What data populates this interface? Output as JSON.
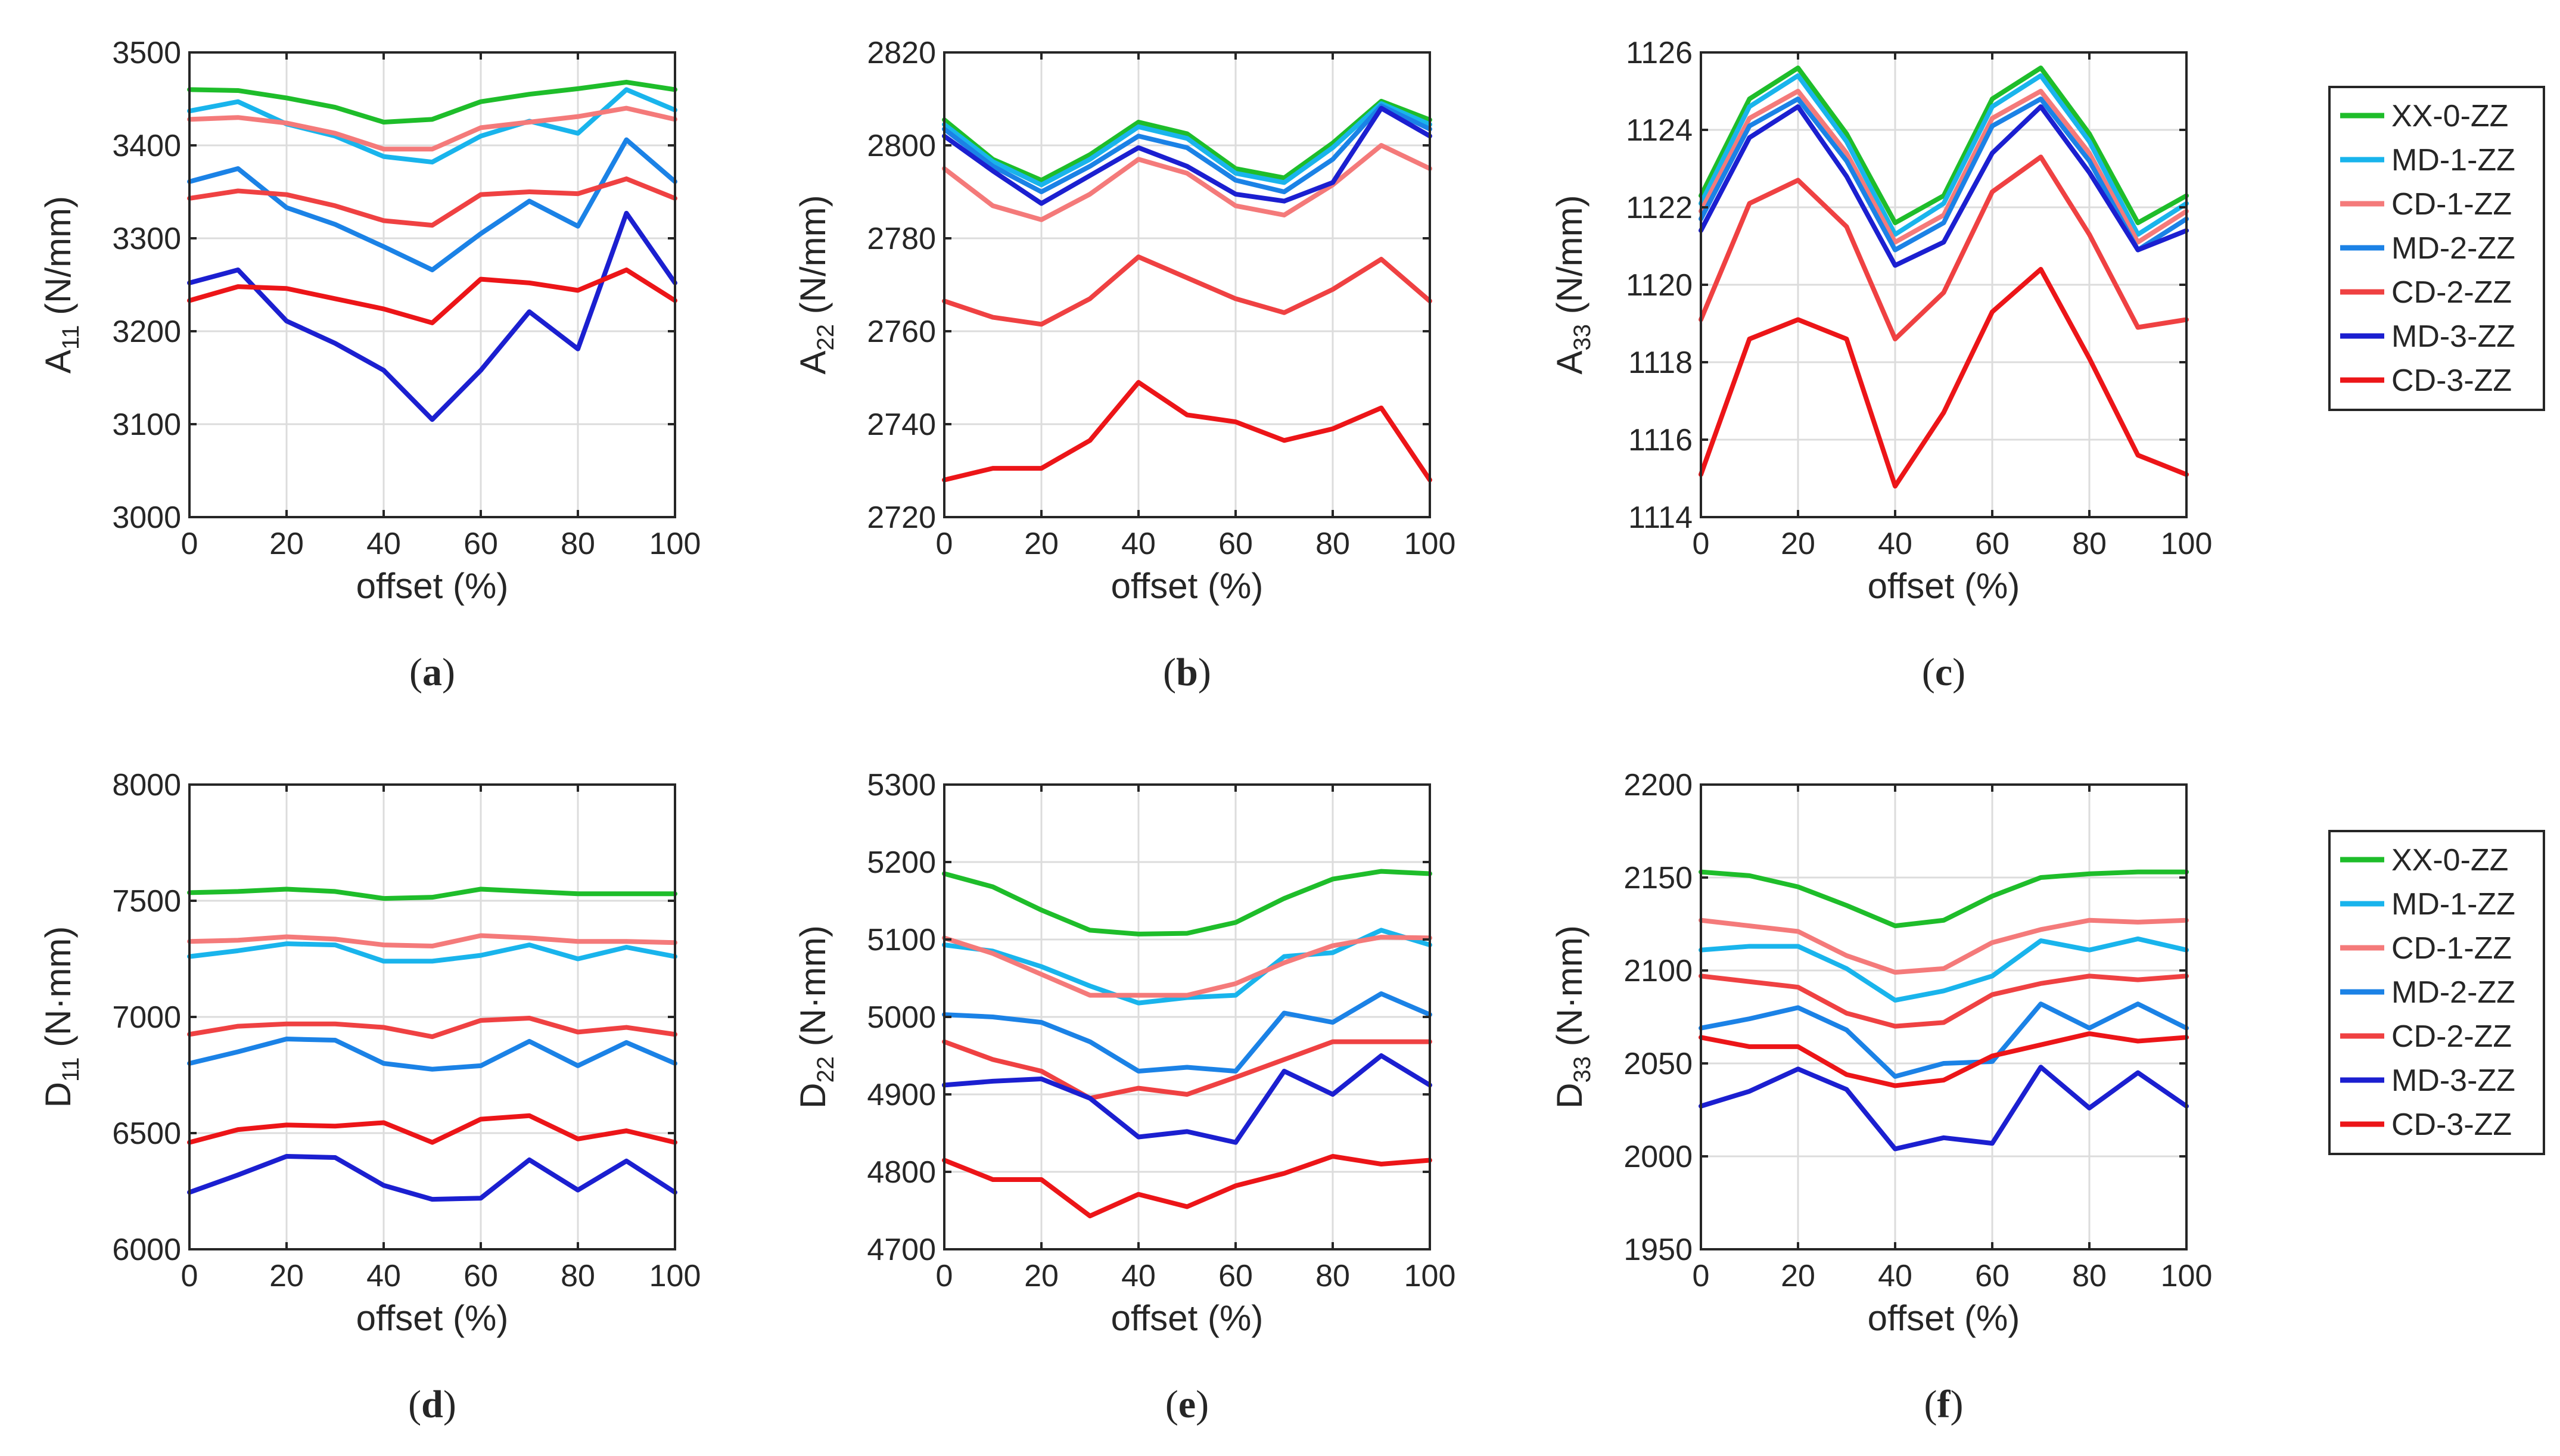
{
  "figure": {
    "legend": {
      "entries": [
        {
          "name": "XX-0-ZZ",
          "color": "#1ebd2a"
        },
        {
          "name": "MD-1-ZZ",
          "color": "#19b4ec"
        },
        {
          "name": "CD-1-ZZ",
          "color": "#f47a7a"
        },
        {
          "name": "MD-2-ZZ",
          "color": "#1b82e6"
        },
        {
          "name": "CD-2-ZZ",
          "color": "#ef4142"
        },
        {
          "name": "MD-3-ZZ",
          "color": "#1b1fd0"
        },
        {
          "name": "CD-3-ZZ",
          "color": "#ec1518"
        }
      ]
    }
  },
  "chart_data": [
    {
      "type": "line",
      "panel": "a",
      "ylabel_main": "A",
      "ylabel_sub": "11",
      "ylabel_unit": " (N/mm)",
      "xlabel": "offset (%)",
      "xlim": [
        0,
        100
      ],
      "ylim": [
        3000,
        3500
      ],
      "grid": true,
      "xticks": [
        0,
        20,
        40,
        60,
        80,
        100
      ],
      "yticks": [
        3000,
        3100,
        3200,
        3300,
        3400,
        3500
      ],
      "x": [
        0,
        10,
        20,
        30,
        40,
        50,
        60,
        70,
        80,
        90,
        100
      ],
      "series": [
        {
          "name": "XX-0-ZZ",
          "values": [
            3460,
            3459,
            3451,
            3441,
            3425,
            3428,
            3447,
            3455,
            3461,
            3468,
            3460
          ]
        },
        {
          "name": "MD-1-ZZ",
          "values": [
            3437,
            3447,
            3423,
            3410,
            3388,
            3382,
            3410,
            3426,
            3413,
            3460,
            3438
          ]
        },
        {
          "name": "CD-1-ZZ",
          "values": [
            3428,
            3430,
            3424,
            3413,
            3396,
            3396,
            3419,
            3425,
            3431,
            3440,
            3428
          ]
        },
        {
          "name": "MD-2-ZZ",
          "values": [
            3361,
            3375,
            3333,
            3315,
            3291,
            3266,
            3305,
            3340,
            3313,
            3406,
            3361
          ]
        },
        {
          "name": "CD-2-ZZ",
          "values": [
            3343,
            3351,
            3347,
            3335,
            3319,
            3314,
            3347,
            3350,
            3348,
            3364,
            3343
          ]
        },
        {
          "name": "MD-3-ZZ",
          "values": [
            3252,
            3266,
            3211,
            3187,
            3158,
            3105,
            3158,
            3221,
            3181,
            3327,
            3252
          ]
        },
        {
          "name": "CD-3-ZZ",
          "values": [
            3233,
            3248,
            3246,
            3235,
            3224,
            3209,
            3256,
            3252,
            3244,
            3266,
            3233
          ]
        }
      ]
    },
    {
      "type": "line",
      "panel": "b",
      "ylabel_main": "A",
      "ylabel_sub": "22",
      "ylabel_unit": " (N/mm)",
      "xlabel": "offset (%)",
      "xlim": [
        0,
        100
      ],
      "ylim": [
        2720,
        2820
      ],
      "grid": true,
      "xticks": [
        0,
        20,
        40,
        60,
        80,
        100
      ],
      "yticks": [
        2720,
        2740,
        2760,
        2780,
        2800,
        2820
      ],
      "x": [
        0,
        10,
        20,
        30,
        40,
        50,
        60,
        70,
        80,
        90,
        100
      ],
      "series": [
        {
          "name": "XX-0-ZZ",
          "values": [
            2805.5,
            2797,
            2792.5,
            2798,
            2805,
            2802.5,
            2795,
            2793,
            2800.5,
            2809.5,
            2805.5
          ]
        },
        {
          "name": "MD-1-ZZ",
          "values": [
            2804.5,
            2796.5,
            2791.5,
            2797,
            2804,
            2801.5,
            2794,
            2792,
            2799.5,
            2809,
            2804.5
          ]
        },
        {
          "name": "CD-1-ZZ",
          "values": [
            2795,
            2787,
            2784,
            2789.5,
            2797,
            2794,
            2787,
            2785,
            2791.5,
            2800,
            2795
          ]
        },
        {
          "name": "MD-2-ZZ",
          "values": [
            2803.5,
            2795.5,
            2790,
            2795.5,
            2802,
            2799.5,
            2792.5,
            2790,
            2797,
            2808.5,
            2803.5
          ]
        },
        {
          "name": "CD-2-ZZ",
          "values": [
            2766.5,
            2763,
            2761.5,
            2767,
            2776,
            2771.5,
            2767,
            2764,
            2769,
            2775.5,
            2766.5
          ]
        },
        {
          "name": "MD-3-ZZ",
          "values": [
            2802,
            2794.5,
            2787.5,
            2793.5,
            2799.5,
            2795.5,
            2789.5,
            2788,
            2792,
            2808,
            2802
          ]
        },
        {
          "name": "CD-3-ZZ",
          "values": [
            2728,
            2730.5,
            2730.5,
            2736.5,
            2749,
            2742,
            2740.5,
            2736.5,
            2739,
            2743.5,
            2728
          ]
        }
      ]
    },
    {
      "type": "line",
      "panel": "c",
      "ylabel_main": "A",
      "ylabel_sub": "33",
      "ylabel_unit": " (N/mm)",
      "xlabel": "offset (%)",
      "xlim": [
        0,
        100
      ],
      "ylim": [
        1114,
        1126
      ],
      "grid": true,
      "xticks": [
        0,
        20,
        40,
        60,
        80,
        100
      ],
      "yticks": [
        1114,
        1116,
        1118,
        1120,
        1122,
        1124,
        1126
      ],
      "x": [
        0,
        10,
        20,
        30,
        40,
        50,
        60,
        70,
        80,
        90,
        100
      ],
      "series": [
        {
          "name": "XX-0-ZZ",
          "values": [
            1122.3,
            1124.8,
            1125.6,
            1123.9,
            1121.6,
            1122.3,
            1124.8,
            1125.6,
            1123.9,
            1121.6,
            1122.3
          ]
        },
        {
          "name": "MD-1-ZZ",
          "values": [
            1122.1,
            1124.6,
            1125.4,
            1123.7,
            1121.3,
            1122.1,
            1124.6,
            1125.4,
            1123.7,
            1121.3,
            1122.1
          ]
        },
        {
          "name": "CD-1-ZZ",
          "values": [
            1121.9,
            1124.3,
            1125.0,
            1123.4,
            1121.1,
            1121.8,
            1124.3,
            1125.0,
            1123.4,
            1121.1,
            1121.9
          ]
        },
        {
          "name": "MD-2-ZZ",
          "values": [
            1121.7,
            1124.1,
            1124.8,
            1123.2,
            1120.9,
            1121.6,
            1124.1,
            1124.8,
            1123.2,
            1120.9,
            1121.7
          ]
        },
        {
          "name": "CD-2-ZZ",
          "values": [
            1119.1,
            1122.1,
            1122.7,
            1121.5,
            1118.6,
            1119.8,
            1122.4,
            1123.3,
            1121.3,
            1118.9,
            1119.1
          ]
        },
        {
          "name": "MD-3-ZZ",
          "values": [
            1121.4,
            1123.8,
            1124.6,
            1122.8,
            1120.5,
            1121.1,
            1123.4,
            1124.6,
            1122.9,
            1120.9,
            1121.4
          ]
        },
        {
          "name": "CD-3-ZZ",
          "values": [
            1115.1,
            1118.6,
            1119.1,
            1118.6,
            1114.8,
            1116.7,
            1119.3,
            1120.4,
            1118.1,
            1115.6,
            1115.1
          ]
        }
      ]
    },
    {
      "type": "line",
      "panel": "d",
      "ylabel_main": "D",
      "ylabel_sub": "11",
      "ylabel_unit": " (N·mm)",
      "xlabel": "offset (%)",
      "xlim": [
        0,
        100
      ],
      "ylim": [
        6000,
        8000
      ],
      "grid": true,
      "xticks": [
        0,
        20,
        40,
        60,
        80,
        100
      ],
      "yticks": [
        6000,
        6500,
        7000,
        7500,
        8000
      ],
      "x": [
        0,
        10,
        20,
        30,
        40,
        50,
        60,
        70,
        80,
        90,
        100
      ],
      "series": [
        {
          "name": "XX-0-ZZ",
          "values": [
            7535,
            7540,
            7550,
            7540,
            7510,
            7515,
            7550,
            7540,
            7530,
            7530,
            7530
          ]
        },
        {
          "name": "MD-1-ZZ",
          "values": [
            7260,
            7285,
            7315,
            7310,
            7240,
            7240,
            7265,
            7310,
            7250,
            7300,
            7260
          ]
        },
        {
          "name": "CD-1-ZZ",
          "values": [
            7325,
            7330,
            7345,
            7335,
            7310,
            7305,
            7350,
            7340,
            7325,
            7325,
            7320
          ]
        },
        {
          "name": "MD-2-ZZ",
          "values": [
            6800,
            6850,
            6905,
            6900,
            6800,
            6775,
            6790,
            6895,
            6790,
            6890,
            6800
          ]
        },
        {
          "name": "CD-2-ZZ",
          "values": [
            6925,
            6960,
            6970,
            6970,
            6955,
            6915,
            6985,
            6995,
            6935,
            6955,
            6925
          ]
        },
        {
          "name": "MD-3-ZZ",
          "values": [
            6245,
            6320,
            6400,
            6395,
            6275,
            6215,
            6220,
            6385,
            6255,
            6380,
            6245
          ]
        },
        {
          "name": "CD-3-ZZ",
          "values": [
            6460,
            6515,
            6535,
            6530,
            6545,
            6460,
            6560,
            6575,
            6475,
            6510,
            6460
          ]
        }
      ]
    },
    {
      "type": "line",
      "panel": "e",
      "ylabel_main": "D",
      "ylabel_sub": "22",
      "ylabel_unit": " (N·mm)",
      "xlabel": "offset (%)",
      "xlim": [
        0,
        100
      ],
      "ylim": [
        4700,
        5300
      ],
      "grid": true,
      "xticks": [
        0,
        20,
        40,
        60,
        80,
        100
      ],
      "yticks": [
        4700,
        4800,
        4900,
        5000,
        5100,
        5200,
        5300
      ],
      "x": [
        0,
        10,
        20,
        30,
        40,
        50,
        60,
        70,
        80,
        90,
        100
      ],
      "series": [
        {
          "name": "XX-0-ZZ",
          "values": [
            5185,
            5168,
            5138,
            5112,
            5107,
            5108,
            5122,
            5153,
            5178,
            5188,
            5185
          ]
        },
        {
          "name": "MD-1-ZZ",
          "values": [
            5093,
            5085,
            5065,
            5040,
            5018,
            5025,
            5028,
            5078,
            5083,
            5112,
            5093
          ]
        },
        {
          "name": "CD-1-ZZ",
          "values": [
            5102,
            5082,
            5055,
            5028,
            5028,
            5028,
            5043,
            5070,
            5092,
            5103,
            5102
          ]
        },
        {
          "name": "MD-2-ZZ",
          "values": [
            5003,
            5000,
            4993,
            4968,
            4930,
            4935,
            4930,
            5005,
            4993,
            5030,
            5003
          ]
        },
        {
          "name": "CD-2-ZZ",
          "values": [
            4968,
            4945,
            4930,
            4895,
            4908,
            4900,
            4922,
            4945,
            4968,
            4968,
            4968
          ]
        },
        {
          "name": "MD-3-ZZ",
          "values": [
            4912,
            4917,
            4920,
            4895,
            4845,
            4852,
            4838,
            4930,
            4900,
            4950,
            4912
          ]
        },
        {
          "name": "CD-3-ZZ",
          "values": [
            4815,
            4790,
            4790,
            4743,
            4771,
            4755,
            4782,
            4798,
            4820,
            4810,
            4815
          ]
        }
      ]
    },
    {
      "type": "line",
      "panel": "f",
      "ylabel_main": "D",
      "ylabel_sub": "33",
      "ylabel_unit": " (N·mm)",
      "xlabel": "offset (%)",
      "xlim": [
        0,
        100
      ],
      "ylim": [
        1950,
        2200
      ],
      "grid": true,
      "xticks": [
        0,
        20,
        40,
        60,
        80,
        100
      ],
      "yticks": [
        1950,
        2000,
        2050,
        2100,
        2150,
        2200
      ],
      "x": [
        0,
        10,
        20,
        30,
        40,
        50,
        60,
        70,
        80,
        90,
        100
      ],
      "series": [
        {
          "name": "XX-0-ZZ",
          "values": [
            2153,
            2151,
            2145,
            2135,
            2124,
            2127,
            2140,
            2150,
            2152,
            2153,
            2153
          ]
        },
        {
          "name": "MD-1-ZZ",
          "values": [
            2111,
            2113,
            2113,
            2101,
            2084,
            2089,
            2097,
            2116,
            2111,
            2117,
            2111
          ]
        },
        {
          "name": "CD-1-ZZ",
          "values": [
            2127,
            2124,
            2121,
            2108,
            2099,
            2101,
            2115,
            2122,
            2127,
            2126,
            2127
          ]
        },
        {
          "name": "MD-2-ZZ",
          "values": [
            2069,
            2074,
            2080,
            2068,
            2043,
            2050,
            2051,
            2082,
            2069,
            2082,
            2069
          ]
        },
        {
          "name": "CD-2-ZZ",
          "values": [
            2097,
            2094,
            2091,
            2077,
            2070,
            2072,
            2087,
            2093,
            2097,
            2095,
            2097
          ]
        },
        {
          "name": "MD-3-ZZ",
          "values": [
            2027,
            2035,
            2047,
            2036,
            2004,
            2010,
            2007,
            2048,
            2026,
            2045,
            2027
          ]
        },
        {
          "name": "CD-3-ZZ",
          "values": [
            2064,
            2059,
            2059,
            2044,
            2038,
            2041,
            2054,
            2060,
            2066,
            2062,
            2064
          ]
        }
      ]
    }
  ]
}
